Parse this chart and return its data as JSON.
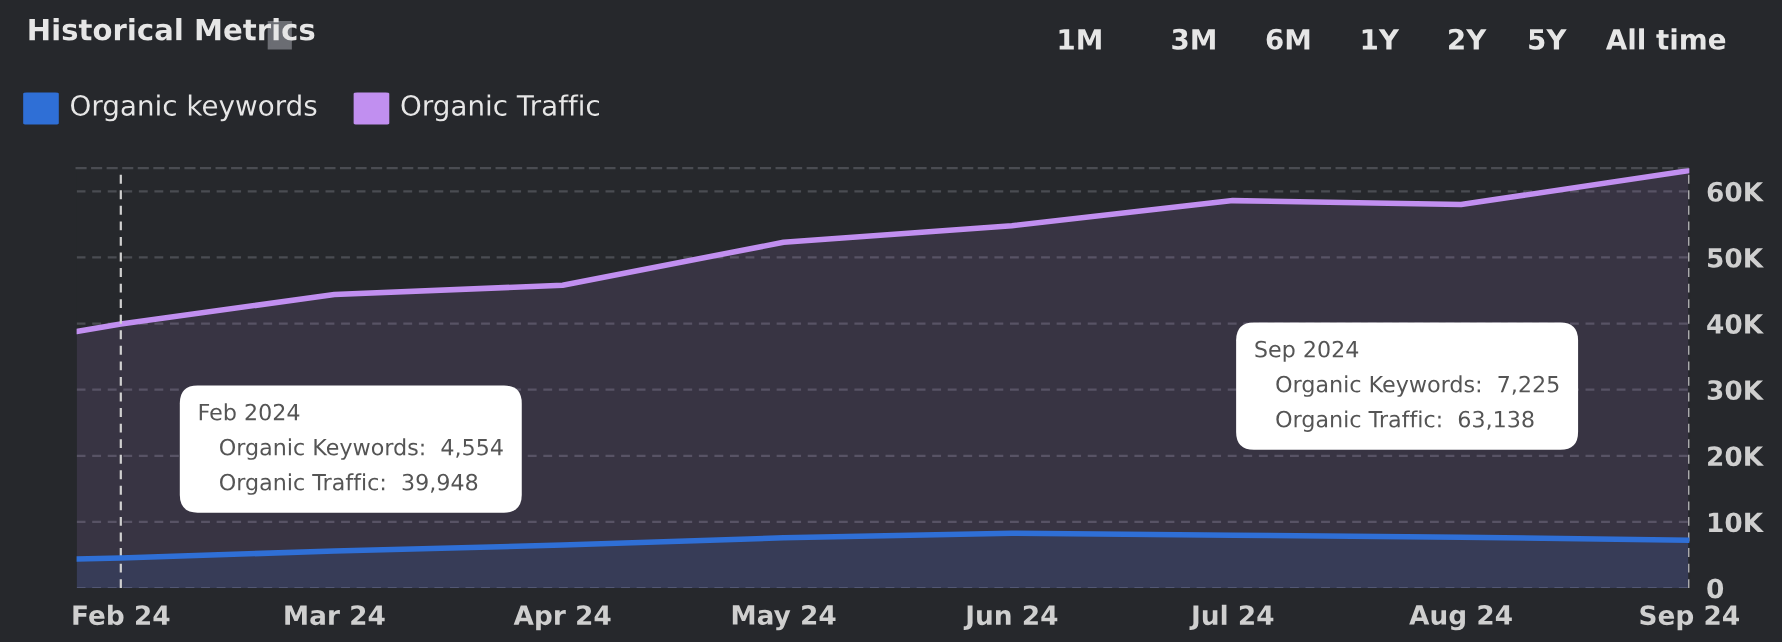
{
  "chart_data": {
    "type": "area",
    "title": "Historical Metrics",
    "x": [
      "2024-01-26",
      "2024-02-01",
      "2024-03-01",
      "2024-04-01",
      "2024-05-01",
      "2024-06-01",
      "2024-07-01",
      "2024-08-01",
      "2024-09-01"
    ],
    "series": [
      {
        "name": "Organic keywords",
        "color": "#2f6fd6",
        "values": [
          4400,
          4554,
          5600,
          6500,
          7600,
          8300,
          8000,
          7700,
          7225
        ]
      },
      {
        "name": "Organic Traffic",
        "color": "#c18ff0",
        "values": [
          38800,
          39948,
          44400,
          45800,
          52300,
          54800,
          58600,
          58000,
          63138
        ]
      }
    ],
    "xlim": [
      "2024-01-26",
      "2024-09-01"
    ],
    "xticks": [
      {
        "value": "2024-02-01",
        "label": "Feb 24"
      },
      {
        "value": "2024-03-01",
        "label": "Mar 24"
      },
      {
        "value": "2024-04-01",
        "label": "Apr 24"
      },
      {
        "value": "2024-05-01",
        "label": "May 24"
      },
      {
        "value": "2024-06-01",
        "label": "Jun 24"
      },
      {
        "value": "2024-07-01",
        "label": "Jul 24"
      },
      {
        "value": "2024-08-01",
        "label": "Aug 24"
      },
      {
        "value": "2024-09-01",
        "label": "Sep 24"
      }
    ],
    "ylim": [
      0,
      63500
    ],
    "yticks": [
      0,
      {
        "value": 10000,
        "label": "10K"
      },
      {
        "value": 20000,
        "label": "20K"
      },
      {
        "value": 30000,
        "label": "30K"
      },
      {
        "value": 40000,
        "label": "40K"
      },
      {
        "value": 50000,
        "label": "50K"
      },
      {
        "value": 60000,
        "label": "60K"
      }
    ],
    "grid": "y",
    "legend": "top left",
    "ref_lines": [
      {
        "axis": "x",
        "value": "2024-02-01",
        "line_style": "dashed"
      },
      {
        "axis": "x",
        "value": "2024-09-01",
        "line_style": "dashed"
      }
    ],
    "annotations": [
      "1M",
      "3M",
      "6M",
      "1Y",
      "2Y",
      "5Y",
      "All time",
      "Feb 2024\nOrganic Keywords:  4,554\nOrganic Traffic:  39,948",
      "Sep 2024\nOrganic Keywords:  7,225\nOrganic Traffic:  63,138"
    ]
  }
}
